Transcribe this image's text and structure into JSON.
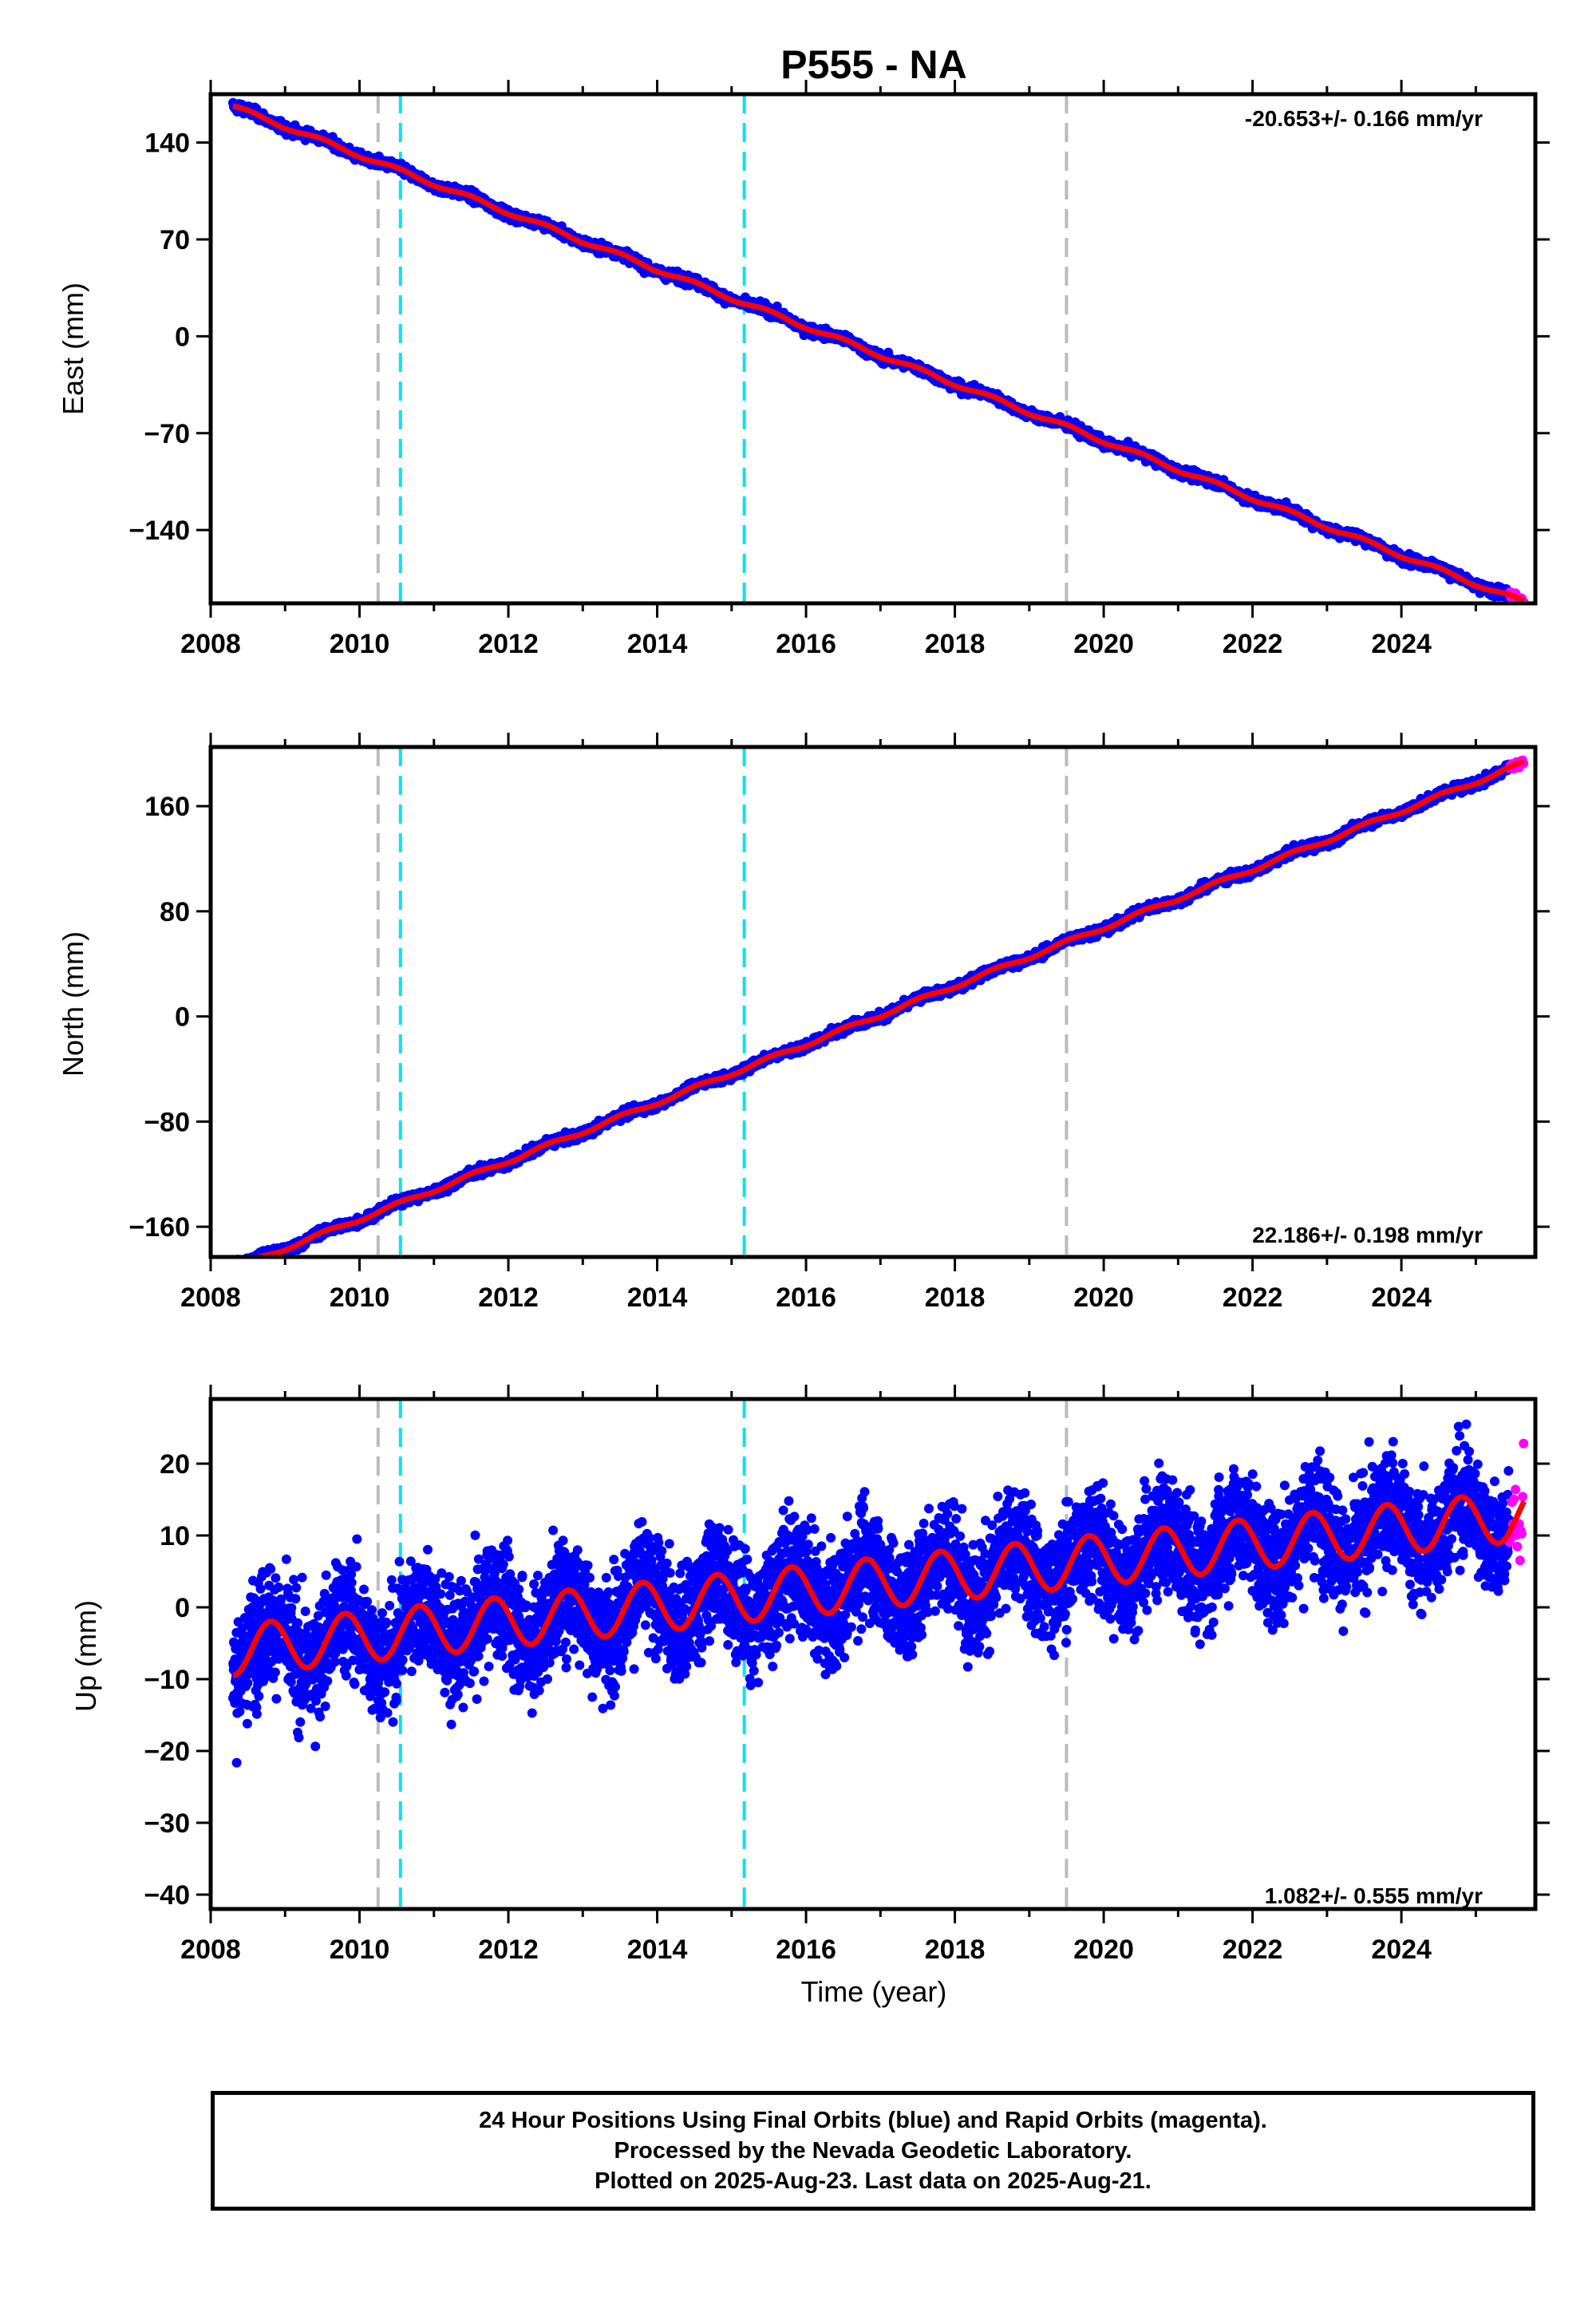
{
  "chart_data": {
    "title": "P555 - NA",
    "type": "scatter",
    "x_ticks": [
      "2008",
      "2010",
      "2012",
      "2014",
      "2016",
      "2018",
      "2020",
      "2022",
      "2024"
    ],
    "xlim": [
      2008.0,
      2025.8
    ],
    "xlabel": "Time (year)",
    "grey_event_lines": [
      2010.25,
      2019.5
    ],
    "cyan_event_lines": [
      2010.55,
      2015.17
    ],
    "colors": {
      "final": "#0000ff",
      "rapid": "#ff00ff",
      "model": "#ff0000",
      "grey_line": "#bbbbbb",
      "cyan_line": "#00e5ee"
    },
    "panels": [
      {
        "ylabel": "East (mm)",
        "ylim": [
          -193,
          175
        ],
        "yticks": [
          140,
          70,
          0,
          -70,
          -140
        ],
        "ytick_labels": [
          "140",
          "70",
          "0",
          "−70",
          "−140"
        ],
        "rate": "-20.653+/- 0.166 mm/yr",
        "rate_position": "top-right",
        "model": {
          "t0": 2008.3,
          "v0": 166,
          "slope": -20.653,
          "amp": 1.5,
          "phase": 0.3
        },
        "noise": 2.5,
        "rapid_range": [
          2025.45,
          2025.65
        ]
      },
      {
        "ylabel": "North (mm)",
        "ylim": [
          -183,
          205
        ],
        "yticks": [
          160,
          80,
          0,
          -80,
          -160
        ],
        "ytick_labels": [
          "160",
          "80",
          "0",
          "−80",
          "−160"
        ],
        "rate": "22.186+/- 0.198 mm/yr",
        "rate_position": "bottom-right",
        "model": {
          "t0": 2008.3,
          "v0": -192,
          "slope": 22.186,
          "amp": 1.5,
          "phase": 0.1
        },
        "noise": 2.5,
        "rapid_range": [
          2025.45,
          2025.65
        ]
      },
      {
        "ylabel": "Up (mm)",
        "ylim": [
          -42,
          29
        ],
        "yticks": [
          20,
          10,
          0,
          -10,
          -20,
          -30,
          -40
        ],
        "ytick_labels": [
          "20",
          "10",
          "0",
          "−10",
          "−20",
          "−30",
          "−40"
        ],
        "rate": "1.082+/- 0.555 mm/yr",
        "rate_position": "bottom-right",
        "model": {
          "t0": 2008.3,
          "v0": -6,
          "slope": 1.082,
          "amp": 3.5,
          "phase": -1.6
        },
        "noise": 5.5,
        "rapid_range": [
          2025.45,
          2025.65
        ]
      }
    ]
  },
  "footer": {
    "line1": "24 Hour Positions Using Final Orbits (blue) and Rapid Orbits (magenta).",
    "line2": "Processed by the Nevada Geodetic Laboratory.",
    "line3": "Plotted on 2025-Aug-23. Last data on 2025-Aug-21."
  }
}
